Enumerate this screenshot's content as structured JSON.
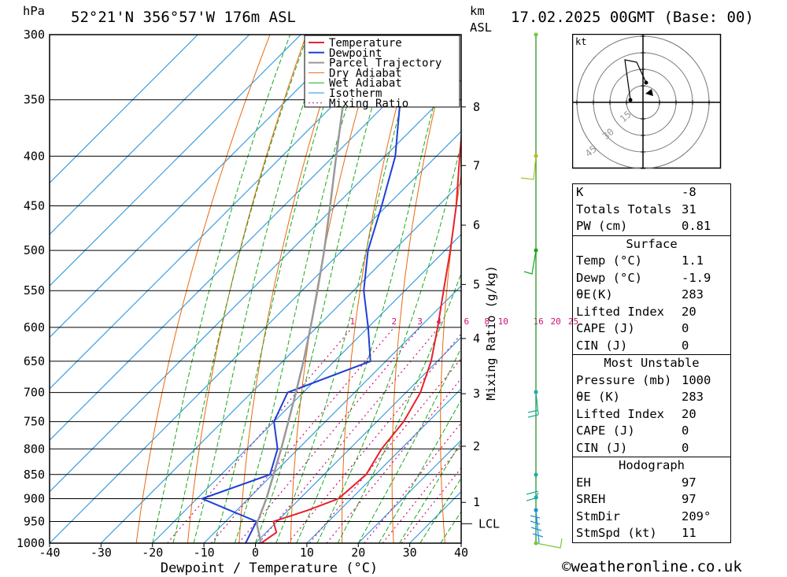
{
  "header": {
    "location": "52°21'N 356°57'W 176m ASL",
    "datetime": "17.02.2025 00GMT (Base: 00)",
    "p_unit": "hPa",
    "km_unit": "km",
    "km_asl": "ASL"
  },
  "chart_data": {
    "type": "line",
    "xlabel": "Dewpoint / Temperature (°C)",
    "mixing_axis_label": "Mixing Ratio (g/kg)",
    "xlim": [
      -40,
      40
    ],
    "plim": [
      1000,
      300
    ],
    "x_ticks": [
      -40,
      -30,
      -20,
      -10,
      0,
      10,
      20,
      30,
      40
    ],
    "p_ticks": [
      300,
      350,
      400,
      450,
      500,
      550,
      600,
      650,
      700,
      750,
      800,
      850,
      900,
      950,
      1000
    ],
    "km_ticks": [
      {
        "label": "1",
        "p": 908
      },
      {
        "label": "2",
        "p": 795
      },
      {
        "label": "3",
        "p": 702
      },
      {
        "label": "4",
        "p": 616
      },
      {
        "label": "5",
        "p": 542
      },
      {
        "label": "6",
        "p": 471
      },
      {
        "label": "7",
        "p": 409
      },
      {
        "label": "8",
        "p": 356
      }
    ],
    "lcl": {
      "label": "LCL",
      "p": 955
    },
    "mixing_ratio_labels": [
      "1",
      "2",
      "3",
      "4",
      "6",
      "8",
      "10",
      "16",
      "20",
      "25"
    ],
    "legend": [
      "Temperature",
      "Dewpoint",
      "Parcel Trajectory",
      "Dry Adiabat",
      "Wet Adiabat",
      "Isotherm",
      "Mixing Ratio"
    ],
    "colors": {
      "temperature": "#e8212b",
      "dewpoint": "#1f3fd6",
      "parcel": "#999999",
      "dry_adiabat": "#e86a10",
      "wet_adiabat": "#1aa81a",
      "isotherm": "#1e90e0",
      "mixing_ratio": "#cc1177"
    },
    "series": [
      {
        "name": "Temperature",
        "points": [
          [
            1000,
            1.1
          ],
          [
            975,
            2.0
          ],
          [
            950,
            -0.7
          ],
          [
            925,
            3.8
          ],
          [
            900,
            7.5
          ],
          [
            850,
            8.2
          ],
          [
            800,
            6.2
          ],
          [
            750,
            5.2
          ],
          [
            700,
            2.8
          ],
          [
            650,
            -1.2
          ],
          [
            600,
            -6.5
          ],
          [
            550,
            -12.5
          ],
          [
            500,
            -19.0
          ],
          [
            450,
            -26.5
          ],
          [
            400,
            -35.5
          ],
          [
            350,
            -45.5
          ],
          [
            300,
            -55.0
          ]
        ]
      },
      {
        "name": "Dewpoint",
        "points": [
          [
            1000,
            -1.9
          ],
          [
            950,
            -4.0
          ],
          [
            900,
            -19.0
          ],
          [
            850,
            -10.5
          ],
          [
            800,
            -14.0
          ],
          [
            750,
            -20.0
          ],
          [
            700,
            -23.0
          ],
          [
            650,
            -13.0
          ],
          [
            600,
            -20.0
          ],
          [
            550,
            -28.0
          ],
          [
            500,
            -35.0
          ],
          [
            450,
            -41.0
          ],
          [
            400,
            -48.0
          ],
          [
            350,
            -58.0
          ],
          [
            300,
            -64.0
          ]
        ]
      },
      {
        "name": "Parcel Trajectory",
        "points": [
          [
            1000,
            1.1
          ],
          [
            955,
            -3.5
          ],
          [
            900,
            -6.5
          ],
          [
            850,
            -9.8
          ],
          [
            800,
            -13.3
          ],
          [
            750,
            -17.2
          ],
          [
            700,
            -21.4
          ],
          [
            650,
            -26.0
          ],
          [
            600,
            -31.2
          ],
          [
            550,
            -37.0
          ],
          [
            500,
            -43.5
          ],
          [
            450,
            -51.0
          ],
          [
            400,
            -59.5
          ],
          [
            350,
            -69.0
          ],
          [
            300,
            -79.5
          ]
        ]
      }
    ]
  },
  "hodograph": {
    "unit": "kt",
    "ring_labels": [
      "15",
      "30",
      "45"
    ]
  },
  "indices": {
    "top": [
      {
        "label": "K",
        "value": "-8"
      },
      {
        "label": "Totals Totals",
        "value": "31"
      },
      {
        "label": "PW (cm)",
        "value": "0.81"
      }
    ],
    "surface": {
      "title": "Surface",
      "rows": [
        {
          "label": "Temp (°C)",
          "value": "1.1"
        },
        {
          "label": "Dewp (°C)",
          "value": "-1.9"
        },
        {
          "label": "θE(K)",
          "value": "283"
        },
        {
          "label": "Lifted Index",
          "value": "20"
        },
        {
          "label": "CAPE (J)",
          "value": "0"
        },
        {
          "label": "CIN (J)",
          "value": "0"
        }
      ]
    },
    "most_unstable": {
      "title": "Most Unstable",
      "rows": [
        {
          "label": "Pressure (mb)",
          "value": "1000"
        },
        {
          "label": "θE (K)",
          "value": "283"
        },
        {
          "label": "Lifted Index",
          "value": "20"
        },
        {
          "label": "CAPE (J)",
          "value": "0"
        },
        {
          "label": "CIN (J)",
          "value": "0"
        }
      ]
    },
    "hodograph": {
      "title": "Hodograph",
      "rows": [
        {
          "label": "EH",
          "value": "97"
        },
        {
          "label": "SREH",
          "value": "97"
        },
        {
          "label": "StmDir",
          "value": "209°"
        },
        {
          "label": "StmSpd (kt)",
          "value": "11"
        }
      ]
    }
  },
  "footer": {
    "copyright": "©weatheronline.co.uk"
  }
}
